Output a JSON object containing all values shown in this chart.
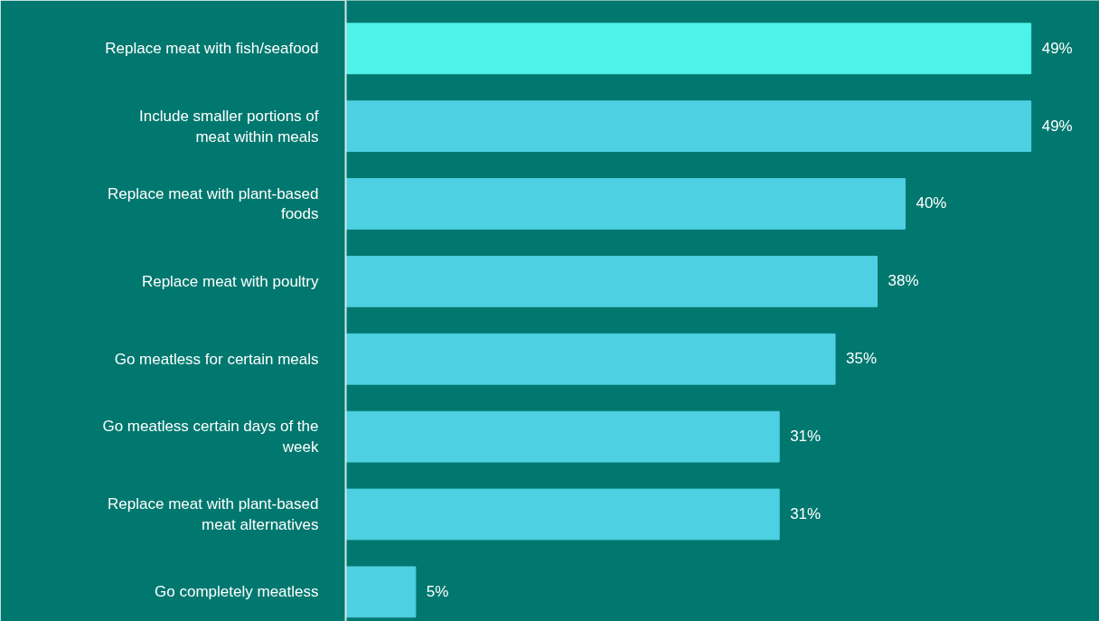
{
  "chart_data": {
    "type": "bar",
    "orientation": "horizontal",
    "categories": [
      "Replace meat with fish/seafood",
      "Include smaller portions of meat within meals",
      "Replace meat with plant-based foods",
      "Replace meat with poultry",
      "Go meatless for certain meals",
      "Go meatless certain days of the week",
      "Replace meat with plant-based meat alternatives",
      "Go completely meatless"
    ],
    "values": [
      49,
      49,
      40,
      38,
      35,
      31,
      31,
      5
    ],
    "colors": [
      "#4ef2e8",
      "#4dd0e2",
      "#4dd0e2",
      "#4dd0e2",
      "#4dd0e2",
      "#4dd0e2",
      "#4dd0e2",
      "#4dd0e2"
    ],
    "value_labels": [
      "49%",
      "49%",
      "40%",
      "38%",
      "35%",
      "31%",
      "31%",
      "5%"
    ],
    "grid": false
  }
}
